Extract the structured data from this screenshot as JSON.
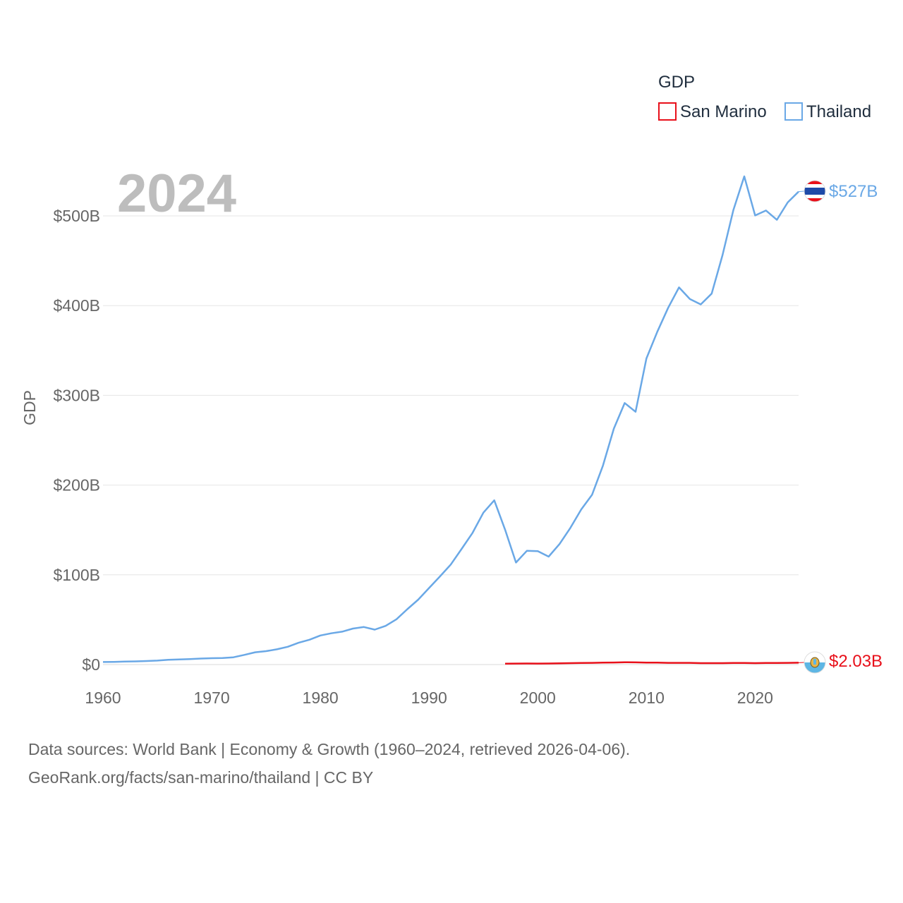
{
  "chart_data": {
    "type": "line",
    "title": "",
    "year_label": "2024",
    "xlabel": "",
    "ylabel": "GDP",
    "xlim": [
      1960,
      2024
    ],
    "ylim": [
      0,
      540
    ],
    "y_unit": "billion USD",
    "x_ticks": [
      "1960",
      "1970",
      "1980",
      "1990",
      "2000",
      "2010",
      "2020"
    ],
    "y_ticks": [
      {
        "value": 0,
        "label": "$0"
      },
      {
        "value": 100,
        "label": "$100B"
      },
      {
        "value": 200,
        "label": "$200B"
      },
      {
        "value": 300,
        "label": "$300B"
      },
      {
        "value": 400,
        "label": "$400B"
      },
      {
        "value": 500,
        "label": "$500B"
      }
    ],
    "legend": {
      "title": "GDP",
      "position": "top-right"
    },
    "series": [
      {
        "name": "San Marino",
        "color": "#e8101a",
        "end_label": "$2.03B",
        "flag": "San Marino flag",
        "x": [
          1997,
          1998,
          1999,
          2000,
          2001,
          2002,
          2003,
          2004,
          2005,
          2006,
          2007,
          2008,
          2009,
          2010,
          2011,
          2012,
          2013,
          2014,
          2015,
          2016,
          2017,
          2018,
          2019,
          2020,
          2021,
          2022,
          2023,
          2024
        ],
        "values": [
          1.0,
          1.1,
          1.2,
          1.1,
          1.2,
          1.3,
          1.6,
          1.8,
          1.9,
          2.1,
          2.3,
          2.6,
          2.4,
          2.2,
          2.1,
          1.9,
          1.9,
          1.9,
          1.6,
          1.6,
          1.6,
          1.7,
          1.7,
          1.6,
          1.7,
          1.8,
          1.9,
          2.03
        ]
      },
      {
        "name": "Thailand",
        "color": "#6aa8e6",
        "end_label": "$527B",
        "flag": "Thailand flag",
        "x": [
          1960,
          1961,
          1962,
          1963,
          1964,
          1965,
          1966,
          1967,
          1968,
          1969,
          1970,
          1971,
          1972,
          1973,
          1974,
          1975,
          1976,
          1977,
          1978,
          1979,
          1980,
          1981,
          1982,
          1983,
          1984,
          1985,
          1986,
          1987,
          1988,
          1989,
          1990,
          1991,
          1992,
          1993,
          1994,
          1995,
          1996,
          1997,
          1998,
          1999,
          2000,
          2001,
          2002,
          2003,
          2004,
          2005,
          2006,
          2007,
          2008,
          2009,
          2010,
          2011,
          2012,
          2013,
          2014,
          2015,
          2016,
          2017,
          2018,
          2019,
          2020,
          2021,
          2022,
          2023,
          2024
        ],
        "values": [
          2.8,
          3.0,
          3.3,
          3.5,
          3.9,
          4.4,
          5.3,
          5.7,
          6.1,
          6.7,
          7.1,
          7.3,
          8.1,
          10.8,
          13.7,
          14.9,
          17.0,
          19.8,
          24.3,
          27.7,
          32.4,
          34.8,
          36.6,
          40.1,
          41.8,
          38.9,
          43.1,
          50.5,
          61.7,
          72.3,
          85.3,
          98.2,
          111.5,
          128.9,
          146.7,
          169.3,
          183.0,
          150.2,
          113.7,
          126.7,
          126.4,
          120.3,
          134.3,
          152.3,
          172.9,
          189.3,
          221.8,
          262.9,
          291.4,
          281.7,
          341.1,
          370.8,
          397.6,
          420.3,
          407.3,
          401.3,
          413.4,
          456.4,
          506.6,
          544.0,
          500.5,
          506.0,
          495.6,
          515.0,
          527.0
        ]
      }
    ]
  },
  "source": {
    "line1": "Data sources: World Bank | Economy & Growth (1960–2024, retrieved 2026-04-06).",
    "line2": "GeoRank.org/facts/san-marino/thailand | CC BY"
  }
}
